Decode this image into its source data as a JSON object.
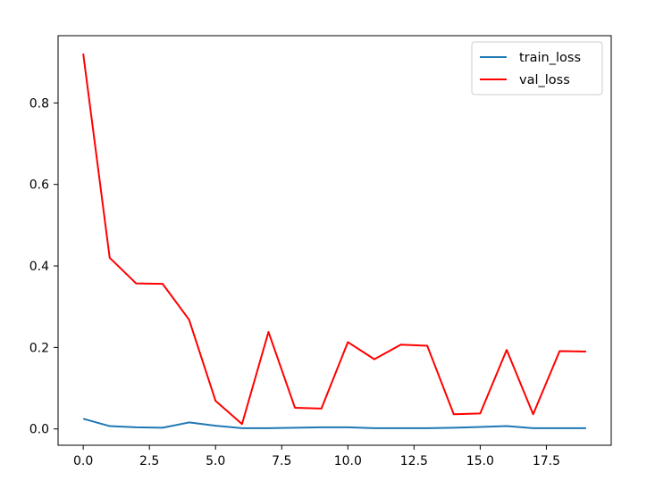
{
  "chart_data": {
    "type": "line",
    "title": "",
    "xlabel": "",
    "ylabel": "",
    "xlim": [
      -0.95,
      19.95
    ],
    "ylim": [
      -0.04,
      0.965
    ],
    "x_ticks": [
      0.0,
      2.5,
      5.0,
      7.5,
      10.0,
      12.5,
      15.0,
      17.5
    ],
    "x_tick_labels": [
      "0.0",
      "2.5",
      "5.0",
      "7.5",
      "10.0",
      "12.5",
      "15.0",
      "17.5"
    ],
    "y_ticks": [
      0.0,
      0.2,
      0.4,
      0.6,
      0.8
    ],
    "y_tick_labels": [
      "0.0",
      "0.2",
      "0.4",
      "0.6",
      "0.8"
    ],
    "grid": false,
    "legend_position": "top-right",
    "x": [
      0,
      1,
      2,
      3,
      4,
      5,
      6,
      7,
      8,
      9,
      10,
      11,
      12,
      13,
      14,
      15,
      16,
      17,
      18,
      19
    ],
    "series": [
      {
        "name": "train_loss",
        "color": "#1f77b4",
        "values": [
          0.025,
          0.007,
          0.004,
          0.003,
          0.016,
          0.008,
          0.002,
          0.002,
          0.003,
          0.004,
          0.004,
          0.002,
          0.002,
          0.002,
          0.003,
          0.005,
          0.007,
          0.002,
          0.002,
          0.002
        ]
      },
      {
        "name": "val_loss",
        "color": "#ff0000",
        "values": [
          0.921,
          0.42,
          0.357,
          0.356,
          0.268,
          0.069,
          0.012,
          0.238,
          0.052,
          0.05,
          0.213,
          0.171,
          0.207,
          0.204,
          0.036,
          0.038,
          0.194,
          0.036,
          0.191,
          0.19
        ]
      }
    ]
  }
}
